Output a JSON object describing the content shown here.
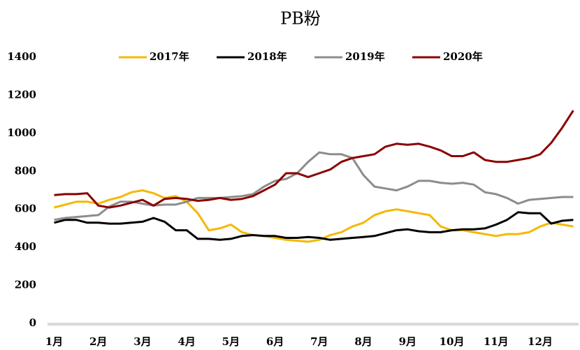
{
  "chart_data": {
    "type": "line",
    "title": "PB粉",
    "x": [
      1,
      1.25,
      1.5,
      1.75,
      2,
      2.25,
      2.5,
      2.75,
      3,
      3.25,
      3.5,
      3.75,
      4,
      4.25,
      4.5,
      4.75,
      5,
      5.25,
      5.5,
      5.75,
      6,
      6.25,
      6.5,
      6.75,
      7,
      7.25,
      7.5,
      7.75,
      8,
      8.25,
      8.5,
      8.75,
      9,
      9.25,
      9.5,
      9.75,
      10,
      10.25,
      10.5,
      10.75,
      11,
      11.25,
      11.5,
      11.75,
      12,
      12.25,
      12.5,
      12.75
    ],
    "series": [
      {
        "name": "2017年",
        "color": "#f5b800",
        "values": [
          610,
          625,
          640,
          640,
          630,
          650,
          665,
          690,
          700,
          685,
          660,
          670,
          640,
          580,
          490,
          500,
          520,
          480,
          465,
          460,
          450,
          440,
          435,
          430,
          440,
          465,
          480,
          510,
          530,
          570,
          590,
          600,
          590,
          580,
          570,
          510,
          490,
          490,
          480,
          470,
          460,
          470,
          470,
          480,
          510,
          530,
          520,
          510
        ]
      },
      {
        "name": "2018年",
        "color": "#000000",
        "values": [
          530,
          545,
          545,
          530,
          530,
          525,
          525,
          530,
          535,
          555,
          535,
          490,
          490,
          445,
          445,
          440,
          445,
          460,
          465,
          460,
          460,
          450,
          450,
          455,
          450,
          440,
          445,
          450,
          455,
          460,
          475,
          490,
          495,
          485,
          480,
          480,
          490,
          495,
          495,
          500,
          520,
          545,
          585,
          580,
          580,
          525,
          540,
          545
        ]
      },
      {
        "name": "2019年",
        "color": "#8c8c8c",
        "values": [
          545,
          555,
          560,
          565,
          570,
          615,
          640,
          640,
          630,
          620,
          625,
          625,
          640,
          660,
          660,
          660,
          665,
          670,
          680,
          720,
          750,
          760,
          790,
          850,
          900,
          890,
          890,
          870,
          780,
          720,
          710,
          700,
          720,
          750,
          750,
          740,
          735,
          740,
          730,
          690,
          680,
          660,
          630,
          650,
          655,
          660,
          665,
          665
        ]
      },
      {
        "name": "2020年",
        "color": "#8b0000",
        "values": [
          675,
          680,
          680,
          685,
          620,
          610,
          620,
          635,
          650,
          620,
          655,
          660,
          655,
          645,
          650,
          660,
          650,
          655,
          670,
          700,
          730,
          790,
          790,
          770,
          790,
          810,
          850,
          870,
          880,
          890,
          930,
          945,
          940,
          945,
          930,
          910,
          880,
          880,
          900,
          860,
          850,
          850,
          860,
          870,
          890,
          950,
          1030,
          1120
        ]
      }
    ],
    "xlim": [
      0.85,
      12.87
    ],
    "xticks": [
      {
        "value": 1,
        "label": "1月"
      },
      {
        "value": 2,
        "label": "2月"
      },
      {
        "value": 3,
        "label": "3月"
      },
      {
        "value": 4,
        "label": "4月"
      },
      {
        "value": 5,
        "label": "5月"
      },
      {
        "value": 6,
        "label": "6月"
      },
      {
        "value": 7,
        "label": "7月"
      },
      {
        "value": 8,
        "label": "8月"
      },
      {
        "value": 9,
        "label": "9月"
      },
      {
        "value": 10,
        "label": "10月"
      },
      {
        "value": 11,
        "label": "11月"
      },
      {
        "value": 12,
        "label": "12月"
      }
    ],
    "ylim": [
      0,
      1400
    ],
    "yticks": [
      0,
      200,
      400,
      600,
      800,
      1000,
      1200,
      1400
    ],
    "legend": "top"
  }
}
